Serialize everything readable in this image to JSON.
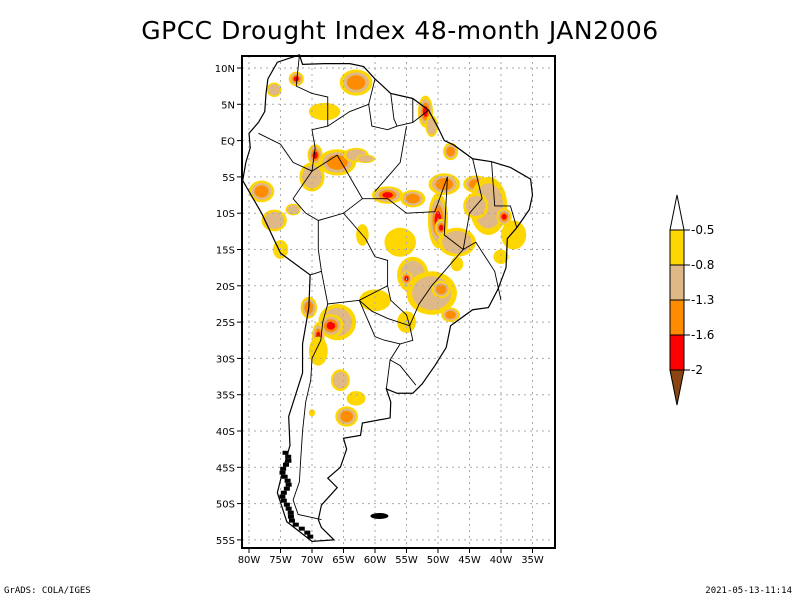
{
  "title": "GPCC Drought Index 48-month JAN2006",
  "map": {
    "region": "South America",
    "lon_range": [
      "81W",
      "32W"
    ],
    "lat_range": [
      "12N",
      "56S"
    ],
    "y_ticks": [
      "10N",
      "5N",
      "EQ",
      "5S",
      "10S",
      "15S",
      "20S",
      "25S",
      "30S",
      "35S",
      "40S",
      "45S",
      "50S",
      "55S"
    ],
    "x_ticks": [
      "80W",
      "75W",
      "70W",
      "65W",
      "60W",
      "55W",
      "50W",
      "45W",
      "40W",
      "35W"
    ],
    "grid": true
  },
  "colorbar": {
    "levels": [
      "-0.5",
      "-0.8",
      "-1.3",
      "-1.6",
      "-2"
    ],
    "colors": {
      "above_-0.5": "#ffffff",
      "-0.8_to_-0.5": "#ffd700",
      "-1.3_to_-0.8": "#deb887",
      "-1.6_to_-1.3": "#ff8c00",
      "-2_to_-1.6": "#ff0000",
      "below_-2": "#8b4513"
    }
  },
  "footer": {
    "left": "GrADS: COLA/IGES",
    "right": "2021-05-13-11:14"
  }
}
